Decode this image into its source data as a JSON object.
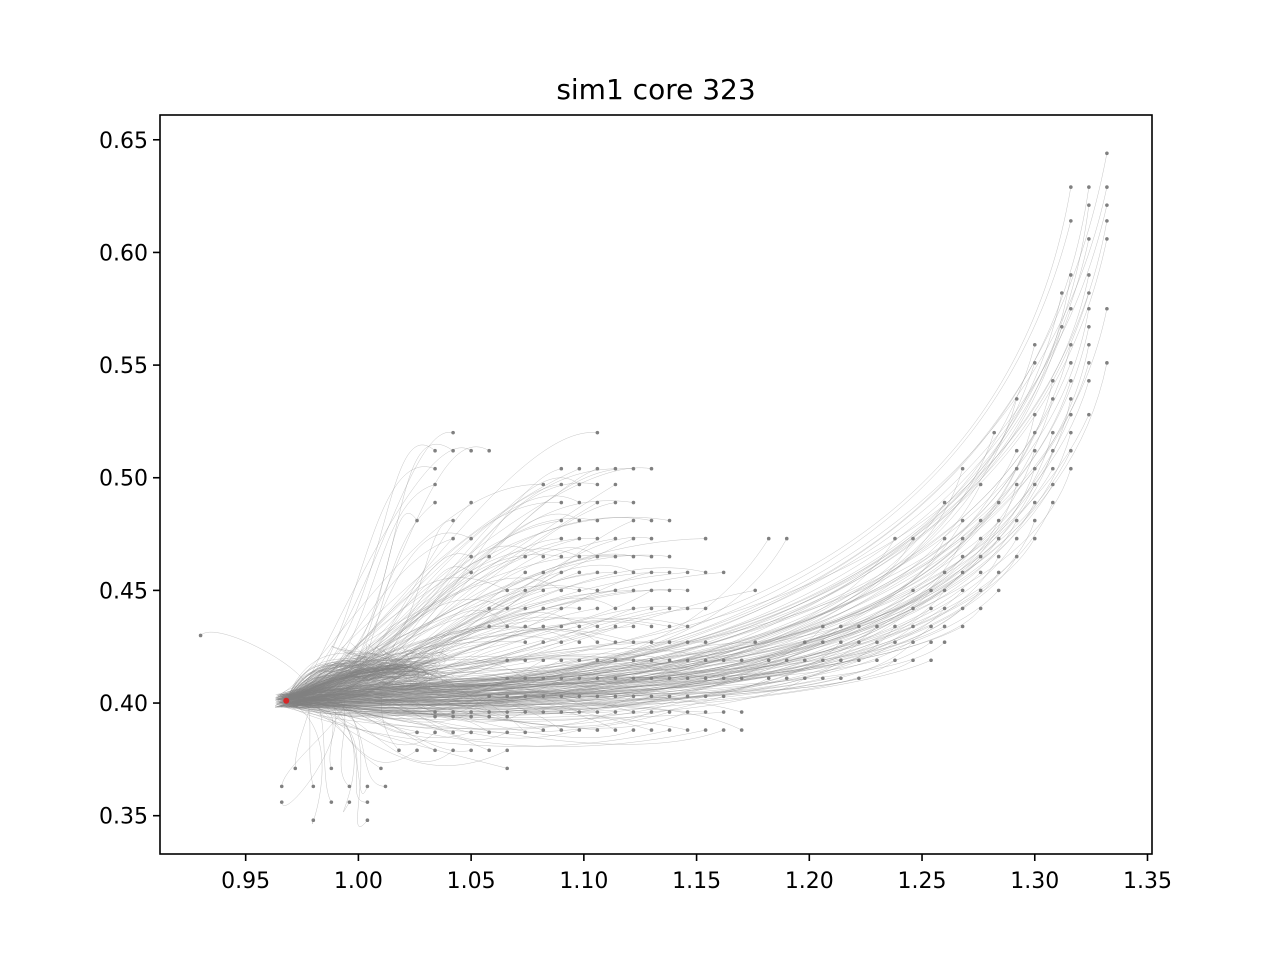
{
  "chart_data": {
    "type": "line",
    "title": "sim1 core 323",
    "xlabel": "",
    "ylabel": "",
    "xlim": [
      0.912,
      1.352
    ],
    "ylim": [
      0.333,
      0.661
    ],
    "xticks": [
      0.95,
      1.0,
      1.05,
      1.1,
      1.15,
      1.2,
      1.25,
      1.3,
      1.35
    ],
    "yticks": [
      0.35,
      0.4,
      0.45,
      0.5,
      0.55,
      0.6,
      0.65
    ],
    "xtick_labels": [
      "0.95",
      "1.00",
      "1.05",
      "1.10",
      "1.15",
      "1.20",
      "1.25",
      "1.30",
      "1.35"
    ],
    "ytick_labels": [
      "0.35",
      "0.40",
      "0.45",
      "0.50",
      "0.55",
      "0.60",
      "0.65"
    ],
    "grid": false,
    "line_color": "#808080",
    "endpoint_color": "#808080",
    "core_color": "#d62728",
    "core_point": [
      0.968,
      0.401
    ],
    "trajectory_endpoints": [
      [
        1.332,
        0.644
      ],
      [
        1.316,
        0.629
      ],
      [
        1.324,
        0.629
      ],
      [
        1.332,
        0.629
      ],
      [
        1.324,
        0.621
      ],
      [
        1.332,
        0.621
      ],
      [
        1.316,
        0.614
      ],
      [
        1.332,
        0.614
      ],
      [
        1.324,
        0.606
      ],
      [
        1.332,
        0.606
      ],
      [
        1.316,
        0.59
      ],
      [
        1.324,
        0.59
      ],
      [
        1.312,
        0.582
      ],
      [
        1.324,
        0.582
      ],
      [
        1.316,
        0.575
      ],
      [
        1.324,
        0.575
      ],
      [
        1.332,
        0.575
      ],
      [
        1.312,
        0.567
      ],
      [
        1.324,
        0.567
      ],
      [
        1.316,
        0.559
      ],
      [
        1.324,
        0.559
      ],
      [
        1.3,
        0.559
      ],
      [
        1.3,
        0.551
      ],
      [
        1.316,
        0.551
      ],
      [
        1.324,
        0.551
      ],
      [
        1.332,
        0.551
      ],
      [
        1.308,
        0.543
      ],
      [
        1.316,
        0.543
      ],
      [
        1.324,
        0.543
      ],
      [
        1.292,
        0.535
      ],
      [
        1.308,
        0.535
      ],
      [
        1.316,
        0.535
      ],
      [
        1.3,
        0.528
      ],
      [
        1.316,
        0.528
      ],
      [
        1.324,
        0.528
      ],
      [
        1.282,
        0.52
      ],
      [
        1.3,
        0.52
      ],
      [
        1.308,
        0.52
      ],
      [
        1.316,
        0.52
      ],
      [
        1.292,
        0.512
      ],
      [
        1.3,
        0.512
      ],
      [
        1.308,
        0.512
      ],
      [
        1.316,
        0.512
      ],
      [
        1.268,
        0.504
      ],
      [
        1.292,
        0.504
      ],
      [
        1.3,
        0.504
      ],
      [
        1.308,
        0.504
      ],
      [
        1.316,
        0.504
      ],
      [
        1.276,
        0.497
      ],
      [
        1.292,
        0.497
      ],
      [
        1.3,
        0.497
      ],
      [
        1.308,
        0.497
      ],
      [
        1.26,
        0.489
      ],
      [
        1.284,
        0.489
      ],
      [
        1.3,
        0.489
      ],
      [
        1.308,
        0.489
      ],
      [
        1.268,
        0.481
      ],
      [
        1.276,
        0.481
      ],
      [
        1.284,
        0.481
      ],
      [
        1.292,
        0.481
      ],
      [
        1.3,
        0.481
      ],
      [
        1.26,
        0.473
      ],
      [
        1.268,
        0.473
      ],
      [
        1.276,
        0.473
      ],
      [
        1.284,
        0.473
      ],
      [
        1.292,
        0.473
      ],
      [
        1.3,
        0.473
      ],
      [
        1.238,
        0.473
      ],
      [
        1.246,
        0.473
      ],
      [
        1.268,
        0.465
      ],
      [
        1.276,
        0.465
      ],
      [
        1.284,
        0.465
      ],
      [
        1.292,
        0.465
      ],
      [
        1.26,
        0.458
      ],
      [
        1.268,
        0.458
      ],
      [
        1.276,
        0.458
      ],
      [
        1.284,
        0.458
      ],
      [
        1.246,
        0.45
      ],
      [
        1.254,
        0.45
      ],
      [
        1.26,
        0.45
      ],
      [
        1.268,
        0.45
      ],
      [
        1.276,
        0.45
      ],
      [
        1.284,
        0.45
      ],
      [
        1.246,
        0.442
      ],
      [
        1.254,
        0.442
      ],
      [
        1.26,
        0.442
      ],
      [
        1.268,
        0.442
      ],
      [
        1.276,
        0.442
      ],
      [
        1.238,
        0.434
      ],
      [
        1.246,
        0.434
      ],
      [
        1.254,
        0.434
      ],
      [
        1.26,
        0.434
      ],
      [
        1.268,
        0.434
      ],
      [
        1.246,
        0.427
      ],
      [
        1.254,
        0.427
      ],
      [
        1.26,
        0.427
      ],
      [
        1.206,
        0.434
      ],
      [
        1.214,
        0.434
      ],
      [
        1.222,
        0.434
      ],
      [
        1.23,
        0.434
      ],
      [
        1.238,
        0.427
      ],
      [
        1.176,
        0.427
      ],
      [
        1.198,
        0.427
      ],
      [
        1.206,
        0.427
      ],
      [
        1.214,
        0.427
      ],
      [
        1.222,
        0.427
      ],
      [
        1.23,
        0.427
      ],
      [
        1.238,
        0.419
      ],
      [
        1.246,
        0.419
      ],
      [
        1.254,
        0.419
      ],
      [
        1.042,
        0.52
      ],
      [
        1.034,
        0.512
      ],
      [
        1.042,
        0.512
      ],
      [
        1.05,
        0.512
      ],
      [
        1.058,
        0.512
      ],
      [
        1.034,
        0.504
      ],
      [
        1.034,
        0.497
      ],
      [
        1.05,
        0.489
      ],
      [
        1.034,
        0.489
      ],
      [
        1.026,
        0.481
      ],
      [
        1.042,
        0.481
      ],
      [
        1.042,
        0.473
      ],
      [
        1.05,
        0.473
      ],
      [
        1.05,
        0.465
      ],
      [
        1.058,
        0.465
      ],
      [
        1.074,
        0.465
      ],
      [
        1.05,
        0.458
      ],
      [
        1.106,
        0.52
      ],
      [
        1.09,
        0.504
      ],
      [
        1.098,
        0.504
      ],
      [
        1.106,
        0.504
      ],
      [
        1.114,
        0.504
      ],
      [
        1.122,
        0.504
      ],
      [
        1.13,
        0.504
      ],
      [
        1.082,
        0.497
      ],
      [
        1.09,
        0.497
      ],
      [
        1.098,
        0.497
      ],
      [
        1.106,
        0.497
      ],
      [
        1.114,
        0.497
      ],
      [
        1.09,
        0.489
      ],
      [
        1.098,
        0.489
      ],
      [
        1.106,
        0.489
      ],
      [
        1.114,
        0.489
      ],
      [
        1.122,
        0.489
      ],
      [
        1.09,
        0.481
      ],
      [
        1.098,
        0.481
      ],
      [
        1.106,
        0.481
      ],
      [
        1.122,
        0.481
      ],
      [
        1.13,
        0.481
      ],
      [
        1.138,
        0.481
      ],
      [
        1.09,
        0.473
      ],
      [
        1.098,
        0.473
      ],
      [
        1.106,
        0.473
      ],
      [
        1.114,
        0.473
      ],
      [
        1.122,
        0.473
      ],
      [
        1.13,
        0.473
      ],
      [
        1.154,
        0.473
      ],
      [
        1.182,
        0.473
      ],
      [
        1.19,
        0.473
      ],
      [
        1.082,
        0.465
      ],
      [
        1.09,
        0.465
      ],
      [
        1.098,
        0.465
      ],
      [
        1.106,
        0.465
      ],
      [
        1.114,
        0.465
      ],
      [
        1.122,
        0.465
      ],
      [
        1.13,
        0.465
      ],
      [
        1.138,
        0.465
      ],
      [
        1.074,
        0.458
      ],
      [
        1.082,
        0.458
      ],
      [
        1.09,
        0.458
      ],
      [
        1.098,
        0.458
      ],
      [
        1.106,
        0.458
      ],
      [
        1.114,
        0.458
      ],
      [
        1.122,
        0.458
      ],
      [
        1.13,
        0.458
      ],
      [
        1.138,
        0.458
      ],
      [
        1.146,
        0.458
      ],
      [
        1.154,
        0.458
      ],
      [
        1.162,
        0.458
      ],
      [
        1.066,
        0.45
      ],
      [
        1.074,
        0.45
      ],
      [
        1.082,
        0.45
      ],
      [
        1.09,
        0.45
      ],
      [
        1.098,
        0.45
      ],
      [
        1.106,
        0.45
      ],
      [
        1.114,
        0.45
      ],
      [
        1.122,
        0.45
      ],
      [
        1.13,
        0.45
      ],
      [
        1.138,
        0.45
      ],
      [
        1.146,
        0.45
      ],
      [
        1.176,
        0.45
      ],
      [
        1.058,
        0.442
      ],
      [
        1.066,
        0.442
      ],
      [
        1.074,
        0.442
      ],
      [
        1.082,
        0.442
      ],
      [
        1.09,
        0.442
      ],
      [
        1.098,
        0.442
      ],
      [
        1.106,
        0.442
      ],
      [
        1.114,
        0.442
      ],
      [
        1.122,
        0.442
      ],
      [
        1.13,
        0.442
      ],
      [
        1.138,
        0.442
      ],
      [
        1.146,
        0.442
      ],
      [
        1.154,
        0.442
      ],
      [
        1.058,
        0.434
      ],
      [
        1.066,
        0.434
      ],
      [
        1.074,
        0.434
      ],
      [
        1.082,
        0.434
      ],
      [
        1.09,
        0.434
      ],
      [
        1.098,
        0.434
      ],
      [
        1.106,
        0.434
      ],
      [
        1.114,
        0.434
      ],
      [
        1.122,
        0.434
      ],
      [
        1.13,
        0.434
      ],
      [
        1.138,
        0.434
      ],
      [
        1.146,
        0.434
      ],
      [
        1.074,
        0.427
      ],
      [
        1.082,
        0.427
      ],
      [
        1.09,
        0.427
      ],
      [
        1.098,
        0.427
      ],
      [
        1.106,
        0.427
      ],
      [
        1.114,
        0.427
      ],
      [
        1.122,
        0.427
      ],
      [
        1.13,
        0.427
      ],
      [
        1.138,
        0.427
      ],
      [
        1.146,
        0.427
      ],
      [
        1.154,
        0.427
      ],
      [
        1.066,
        0.419
      ],
      [
        1.074,
        0.419
      ],
      [
        1.082,
        0.419
      ],
      [
        1.09,
        0.419
      ],
      [
        1.098,
        0.419
      ],
      [
        1.106,
        0.419
      ],
      [
        1.114,
        0.419
      ],
      [
        1.122,
        0.419
      ],
      [
        1.13,
        0.419
      ],
      [
        1.138,
        0.419
      ],
      [
        1.146,
        0.419
      ],
      [
        1.154,
        0.419
      ],
      [
        1.162,
        0.419
      ],
      [
        1.17,
        0.419
      ],
      [
        1.182,
        0.419
      ],
      [
        1.19,
        0.419
      ],
      [
        1.198,
        0.419
      ],
      [
        1.206,
        0.419
      ],
      [
        1.214,
        0.419
      ],
      [
        1.222,
        0.419
      ],
      [
        1.23,
        0.419
      ],
      [
        1.066,
        0.411
      ],
      [
        1.074,
        0.411
      ],
      [
        1.082,
        0.411
      ],
      [
        1.09,
        0.411
      ],
      [
        1.098,
        0.411
      ],
      [
        1.106,
        0.411
      ],
      [
        1.114,
        0.411
      ],
      [
        1.122,
        0.411
      ],
      [
        1.13,
        0.411
      ],
      [
        1.138,
        0.411
      ],
      [
        1.146,
        0.411
      ],
      [
        1.154,
        0.411
      ],
      [
        1.162,
        0.411
      ],
      [
        1.17,
        0.411
      ],
      [
        1.182,
        0.411
      ],
      [
        1.19,
        0.411
      ],
      [
        1.198,
        0.411
      ],
      [
        1.206,
        0.411
      ],
      [
        1.214,
        0.411
      ],
      [
        1.222,
        0.411
      ],
      [
        1.058,
        0.403
      ],
      [
        1.066,
        0.403
      ],
      [
        1.074,
        0.403
      ],
      [
        1.082,
        0.403
      ],
      [
        1.09,
        0.403
      ],
      [
        1.098,
        0.403
      ],
      [
        1.106,
        0.403
      ],
      [
        1.114,
        0.403
      ],
      [
        1.122,
        0.403
      ],
      [
        1.13,
        0.403
      ],
      [
        1.138,
        0.403
      ],
      [
        1.146,
        0.403
      ],
      [
        1.154,
        0.403
      ],
      [
        1.162,
        0.403
      ],
      [
        1.034,
        0.396
      ],
      [
        1.042,
        0.396
      ],
      [
        1.05,
        0.396
      ],
      [
        1.058,
        0.396
      ],
      [
        1.066,
        0.396
      ],
      [
        1.074,
        0.396
      ],
      [
        1.082,
        0.396
      ],
      [
        1.09,
        0.396
      ],
      [
        1.098,
        0.396
      ],
      [
        1.106,
        0.396
      ],
      [
        1.114,
        0.396
      ],
      [
        1.122,
        0.396
      ],
      [
        1.13,
        0.396
      ],
      [
        1.138,
        0.396
      ],
      [
        1.146,
        0.396
      ],
      [
        1.154,
        0.396
      ],
      [
        1.162,
        0.396
      ],
      [
        1.17,
        0.396
      ],
      [
        1.034,
        0.394
      ],
      [
        1.042,
        0.394
      ],
      [
        1.05,
        0.394
      ],
      [
        1.058,
        0.394
      ],
      [
        1.066,
        0.394
      ],
      [
        1.082,
        0.388
      ],
      [
        1.09,
        0.388
      ],
      [
        1.098,
        0.388
      ],
      [
        1.106,
        0.388
      ],
      [
        1.114,
        0.388
      ],
      [
        1.122,
        0.388
      ],
      [
        1.13,
        0.388
      ],
      [
        1.138,
        0.388
      ],
      [
        1.146,
        0.388
      ],
      [
        1.154,
        0.388
      ],
      [
        1.162,
        0.388
      ],
      [
        1.17,
        0.388
      ],
      [
        1.026,
        0.387
      ],
      [
        1.034,
        0.387
      ],
      [
        1.042,
        0.387
      ],
      [
        1.05,
        0.387
      ],
      [
        1.058,
        0.387
      ],
      [
        1.066,
        0.387
      ],
      [
        1.074,
        0.387
      ],
      [
        1.018,
        0.379
      ],
      [
        1.026,
        0.379
      ],
      [
        1.034,
        0.379
      ],
      [
        1.042,
        0.379
      ],
      [
        1.05,
        0.379
      ],
      [
        1.058,
        0.379
      ],
      [
        1.066,
        0.379
      ],
      [
        1.01,
        0.371
      ],
      [
        1.066,
        0.371
      ],
      [
        0.972,
        0.371
      ],
      [
        0.988,
        0.371
      ],
      [
        0.98,
        0.363
      ],
      [
        0.996,
        0.363
      ],
      [
        1.004,
        0.363
      ],
      [
        1.012,
        0.363
      ],
      [
        0.966,
        0.363
      ],
      [
        0.966,
        0.356
      ],
      [
        0.988,
        0.356
      ],
      [
        0.996,
        0.356
      ],
      [
        1.004,
        0.356
      ],
      [
        0.98,
        0.348
      ],
      [
        1.004,
        0.348
      ],
      [
        0.93,
        0.43
      ]
    ]
  }
}
